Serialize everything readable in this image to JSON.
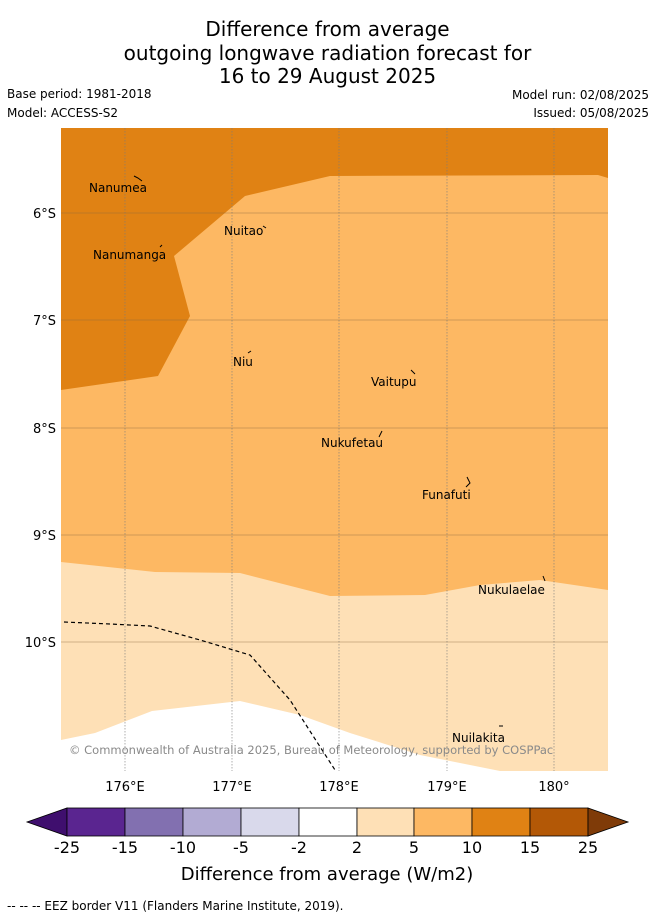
{
  "title": {
    "line1": "Difference from average",
    "line2": "outgoing longwave radiation forecast for",
    "line3": "16 to 29 August 2025"
  },
  "meta": {
    "base_period": "Base period: 1981-2018",
    "model": "Model: ACCESS-S2",
    "model_run": "Model run: 02/08/2025",
    "issued": "Issued: 05/08/2025"
  },
  "map": {
    "lon_ticks": [
      "176°E",
      "177°E",
      "178°E",
      "179°E",
      "180°"
    ],
    "lat_ticks": [
      "6°S",
      "7°S",
      "8°S",
      "9°S",
      "10°S"
    ],
    "lon_range": [
      175.4,
      180.5
    ],
    "lat_range": [
      -11.2,
      -5.2
    ],
    "places": [
      {
        "name": "Nanumea"
      },
      {
        "name": "Nuitao"
      },
      {
        "name": "Nanumanga"
      },
      {
        "name": "Niu"
      },
      {
        "name": "Vaitupu"
      },
      {
        "name": "Nukufetau"
      },
      {
        "name": "Funafuti"
      },
      {
        "name": "Nukulaelae"
      },
      {
        "name": "Nuilakita"
      }
    ],
    "copyright": "© Commonwealth of Australia 2025, Bureau of Meteorology, supported by COSPPac"
  },
  "colorbar": {
    "tick_labels": [
      "-25",
      "-15",
      "-10",
      "-5",
      "-2",
      "2",
      "5",
      "10",
      "15",
      "25"
    ],
    "colors": [
      "#3f0f6e",
      "#5a2590",
      "#8270b0",
      "#b2abd3",
      "#d9d9eb",
      "#ffffff",
      "#fee0b6",
      "#fdb863",
      "#e08214",
      "#b35806",
      "#7f3b08"
    ],
    "label": "Difference from average (W/m2)"
  },
  "footer": {
    "eez_legend": "-- -- -- EEZ border V11 (Flanders Marine Institute, 2019)."
  }
}
